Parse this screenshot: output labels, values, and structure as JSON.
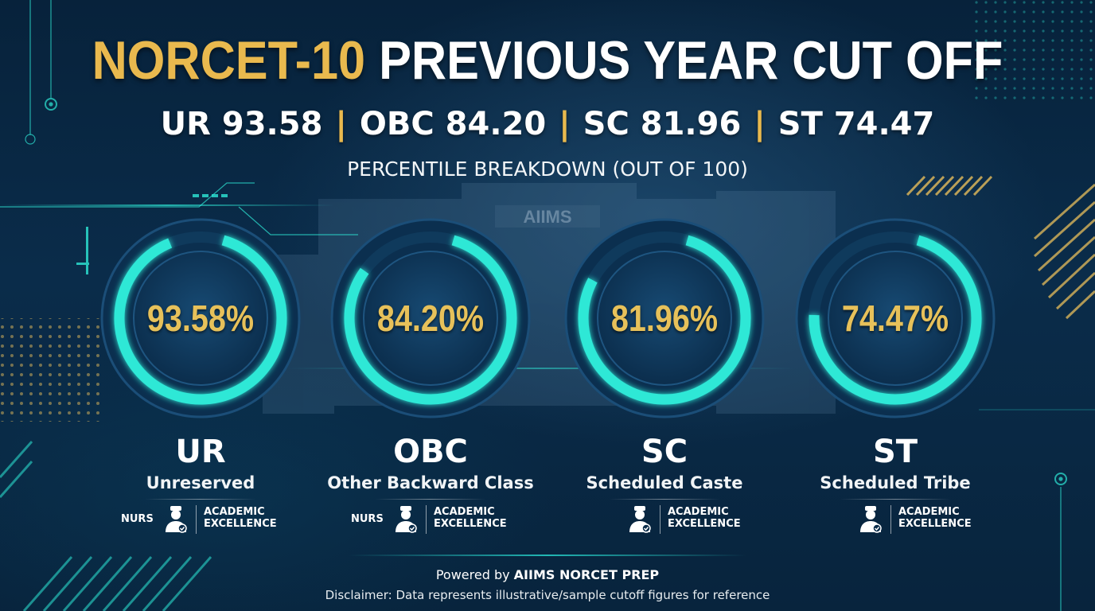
{
  "title": {
    "highlight": "NORCET-10",
    "rest": "PREVIOUS YEAR CUT OFF"
  },
  "summary": {
    "items": [
      "UR 93.58",
      "OBC 84.20",
      "SC 81.96",
      "ST 74.47"
    ],
    "separator": "|"
  },
  "subtitle": "PERCENTILE BREAKDOWN (OUT OF 100)",
  "background_sign": "AIIMS",
  "colors": {
    "gold": "#e9b94e",
    "value_gold": "#e7c15a",
    "ring_teal": "#2ee8d6",
    "ring_track": "#0f3a5c",
    "background": "#0a2c4a"
  },
  "chart_data": {
    "type": "pie",
    "title": "NORCET-10 PREVIOUS YEAR CUT OFF",
    "subtitle": "PERCENTILE BREAKDOWN (OUT OF 100)",
    "max": 100,
    "series": [
      {
        "code": "UR",
        "name": "Unreserved",
        "value": 93.58,
        "label": "93.58%",
        "badge_prefix": "NURS"
      },
      {
        "code": "OBC",
        "name": "Other Backward Class",
        "value": 84.2,
        "label": "84.20%",
        "badge_prefix": "NURS"
      },
      {
        "code": "SC",
        "name": "Scheduled Caste",
        "value": 81.96,
        "label": "81.96%",
        "badge_prefix": ""
      },
      {
        "code": "ST",
        "name": "Scheduled Tribe",
        "value": 74.47,
        "label": "74.47%",
        "badge_prefix": ""
      }
    ]
  },
  "badge": {
    "line1": "ACADEMIC",
    "line2": "EXCELLENCE",
    "icon": "nurse-icon"
  },
  "footer": {
    "powered_prefix": "Powered by",
    "powered_brand": "AIIMS NORCET PREP",
    "disclaimer": "Disclaimer: Data represents illustrative/sample cutoff figures for reference"
  }
}
